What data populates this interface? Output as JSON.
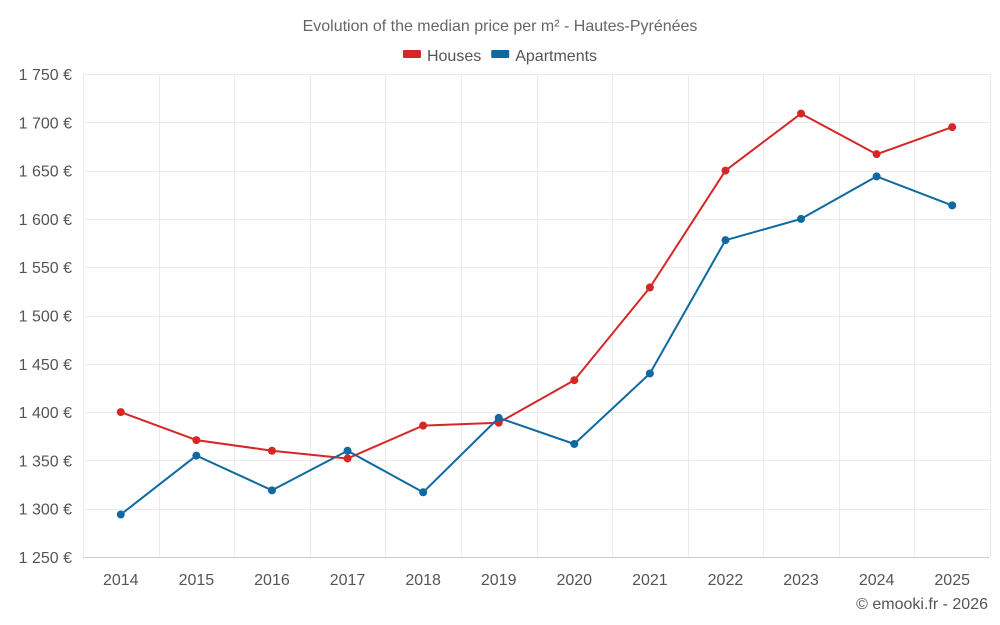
{
  "chart_data": {
    "type": "line",
    "title": "Evolution of the median price per m² - Hautes-Pyrénées",
    "categories": [
      "2014",
      "2015",
      "2016",
      "2017",
      "2018",
      "2019",
      "2020",
      "2021",
      "2022",
      "2023",
      "2024",
      "2025"
    ],
    "series": [
      {
        "name": "Houses",
        "color": "#d62728",
        "values": [
          1400,
          1371,
          1360,
          1352,
          1386,
          1389,
          1433,
          1529,
          1650,
          1709,
          1667,
          1695
        ]
      },
      {
        "name": "Apartments",
        "color": "#0e6aa0",
        "values": [
          1294,
          1355,
          1319,
          1360,
          1317,
          1394,
          1367,
          1440,
          1578,
          1600,
          1644,
          1614
        ]
      }
    ],
    "ylim": [
      1250,
      1750
    ],
    "yticks": [
      1250,
      1300,
      1350,
      1400,
      1450,
      1500,
      1550,
      1600,
      1650,
      1700,
      1750
    ],
    "ytick_labels": [
      "1 250 €",
      "1 300 €",
      "1 350 €",
      "1 400 €",
      "1 450 €",
      "1 500 €",
      "1 550 €",
      "1 600 €",
      "1 650 €",
      "1 700 €",
      "1 750 €"
    ],
    "legend": "top-center",
    "grid": true
  },
  "credit": "© emooki.fr - 2026"
}
